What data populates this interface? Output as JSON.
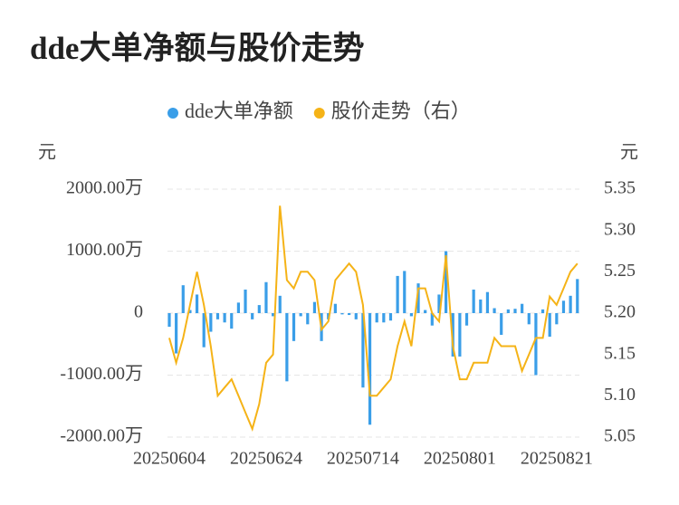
{
  "chart_data": {
    "type": "bar_line",
    "title": "dde大单净额与股价走势",
    "ylabel": "元",
    "y2label": "元",
    "categories": [
      "20250604",
      null,
      null,
      null,
      null,
      null,
      null,
      null,
      null,
      null,
      null,
      null,
      null,
      null,
      "20250624",
      null,
      null,
      null,
      null,
      null,
      null,
      null,
      null,
      null,
      null,
      null,
      null,
      null,
      "20250714",
      null,
      null,
      null,
      null,
      null,
      null,
      null,
      null,
      null,
      null,
      null,
      null,
      null,
      "20250801",
      null,
      null,
      null,
      null,
      null,
      null,
      null,
      null,
      null,
      null,
      null,
      null,
      null,
      "20250821",
      null,
      null,
      null
    ],
    "series": [
      {
        "name": "dde大单净额",
        "type": "bar",
        "color": "#3a9ee8",
        "values": [
          -220,
          -650,
          450,
          50,
          300,
          -550,
          -300,
          -100,
          -150,
          -250,
          170,
          380,
          -100,
          130,
          500,
          -50,
          280,
          -1100,
          -450,
          -50,
          -180,
          180,
          -450,
          -100,
          150,
          -20,
          -30,
          -100,
          -1200,
          -1800,
          -150,
          -150,
          -120,
          600,
          680,
          -50,
          480,
          50,
          -200,
          300,
          1000,
          -700,
          -700,
          -200,
          380,
          220,
          340,
          80,
          -350,
          60,
          70,
          150,
          -180,
          -1000,
          60,
          -380,
          -180,
          200,
          280,
          550
        ]
      },
      {
        "name": "股价走势（右）",
        "type": "line",
        "color": "#f5b317",
        "axis": "y2",
        "values": [
          5.17,
          5.14,
          5.17,
          5.21,
          5.25,
          5.21,
          5.16,
          5.1,
          5.11,
          5.12,
          5.1,
          5.08,
          5.06,
          5.09,
          5.14,
          5.15,
          5.33,
          5.24,
          5.23,
          5.25,
          5.25,
          5.24,
          5.18,
          5.19,
          5.24,
          5.25,
          5.26,
          5.25,
          5.21,
          5.1,
          5.1,
          5.11,
          5.12,
          5.16,
          5.19,
          5.16,
          5.23,
          5.23,
          5.2,
          5.19,
          5.27,
          5.16,
          5.12,
          5.12,
          5.14,
          5.14,
          5.14,
          5.17,
          5.16,
          5.16,
          5.16,
          5.13,
          5.15,
          5.17,
          5.17,
          5.22,
          5.21,
          5.23,
          5.25,
          5.26
        ]
      }
    ],
    "ylim": [
      -2000,
      2000
    ],
    "yticks": [
      {
        "value": -2000,
        "label": "-2000.00万"
      },
      {
        "value": -1000,
        "label": "-1000.00万"
      },
      0,
      {
        "value": 1000,
        "label": "1000.00万"
      },
      {
        "value": 2000,
        "label": "2000.00万"
      }
    ],
    "y2lim": [
      5.05,
      5.35
    ],
    "y2ticks": [
      5.05,
      {
        "value": 5.1,
        "label": "5.10"
      },
      5.15,
      {
        "value": 5.2,
        "label": "5.20"
      },
      5.25,
      {
        "value": 5.3,
        "label": "5.30"
      },
      5.35
    ],
    "grid": true,
    "legend": "top"
  }
}
